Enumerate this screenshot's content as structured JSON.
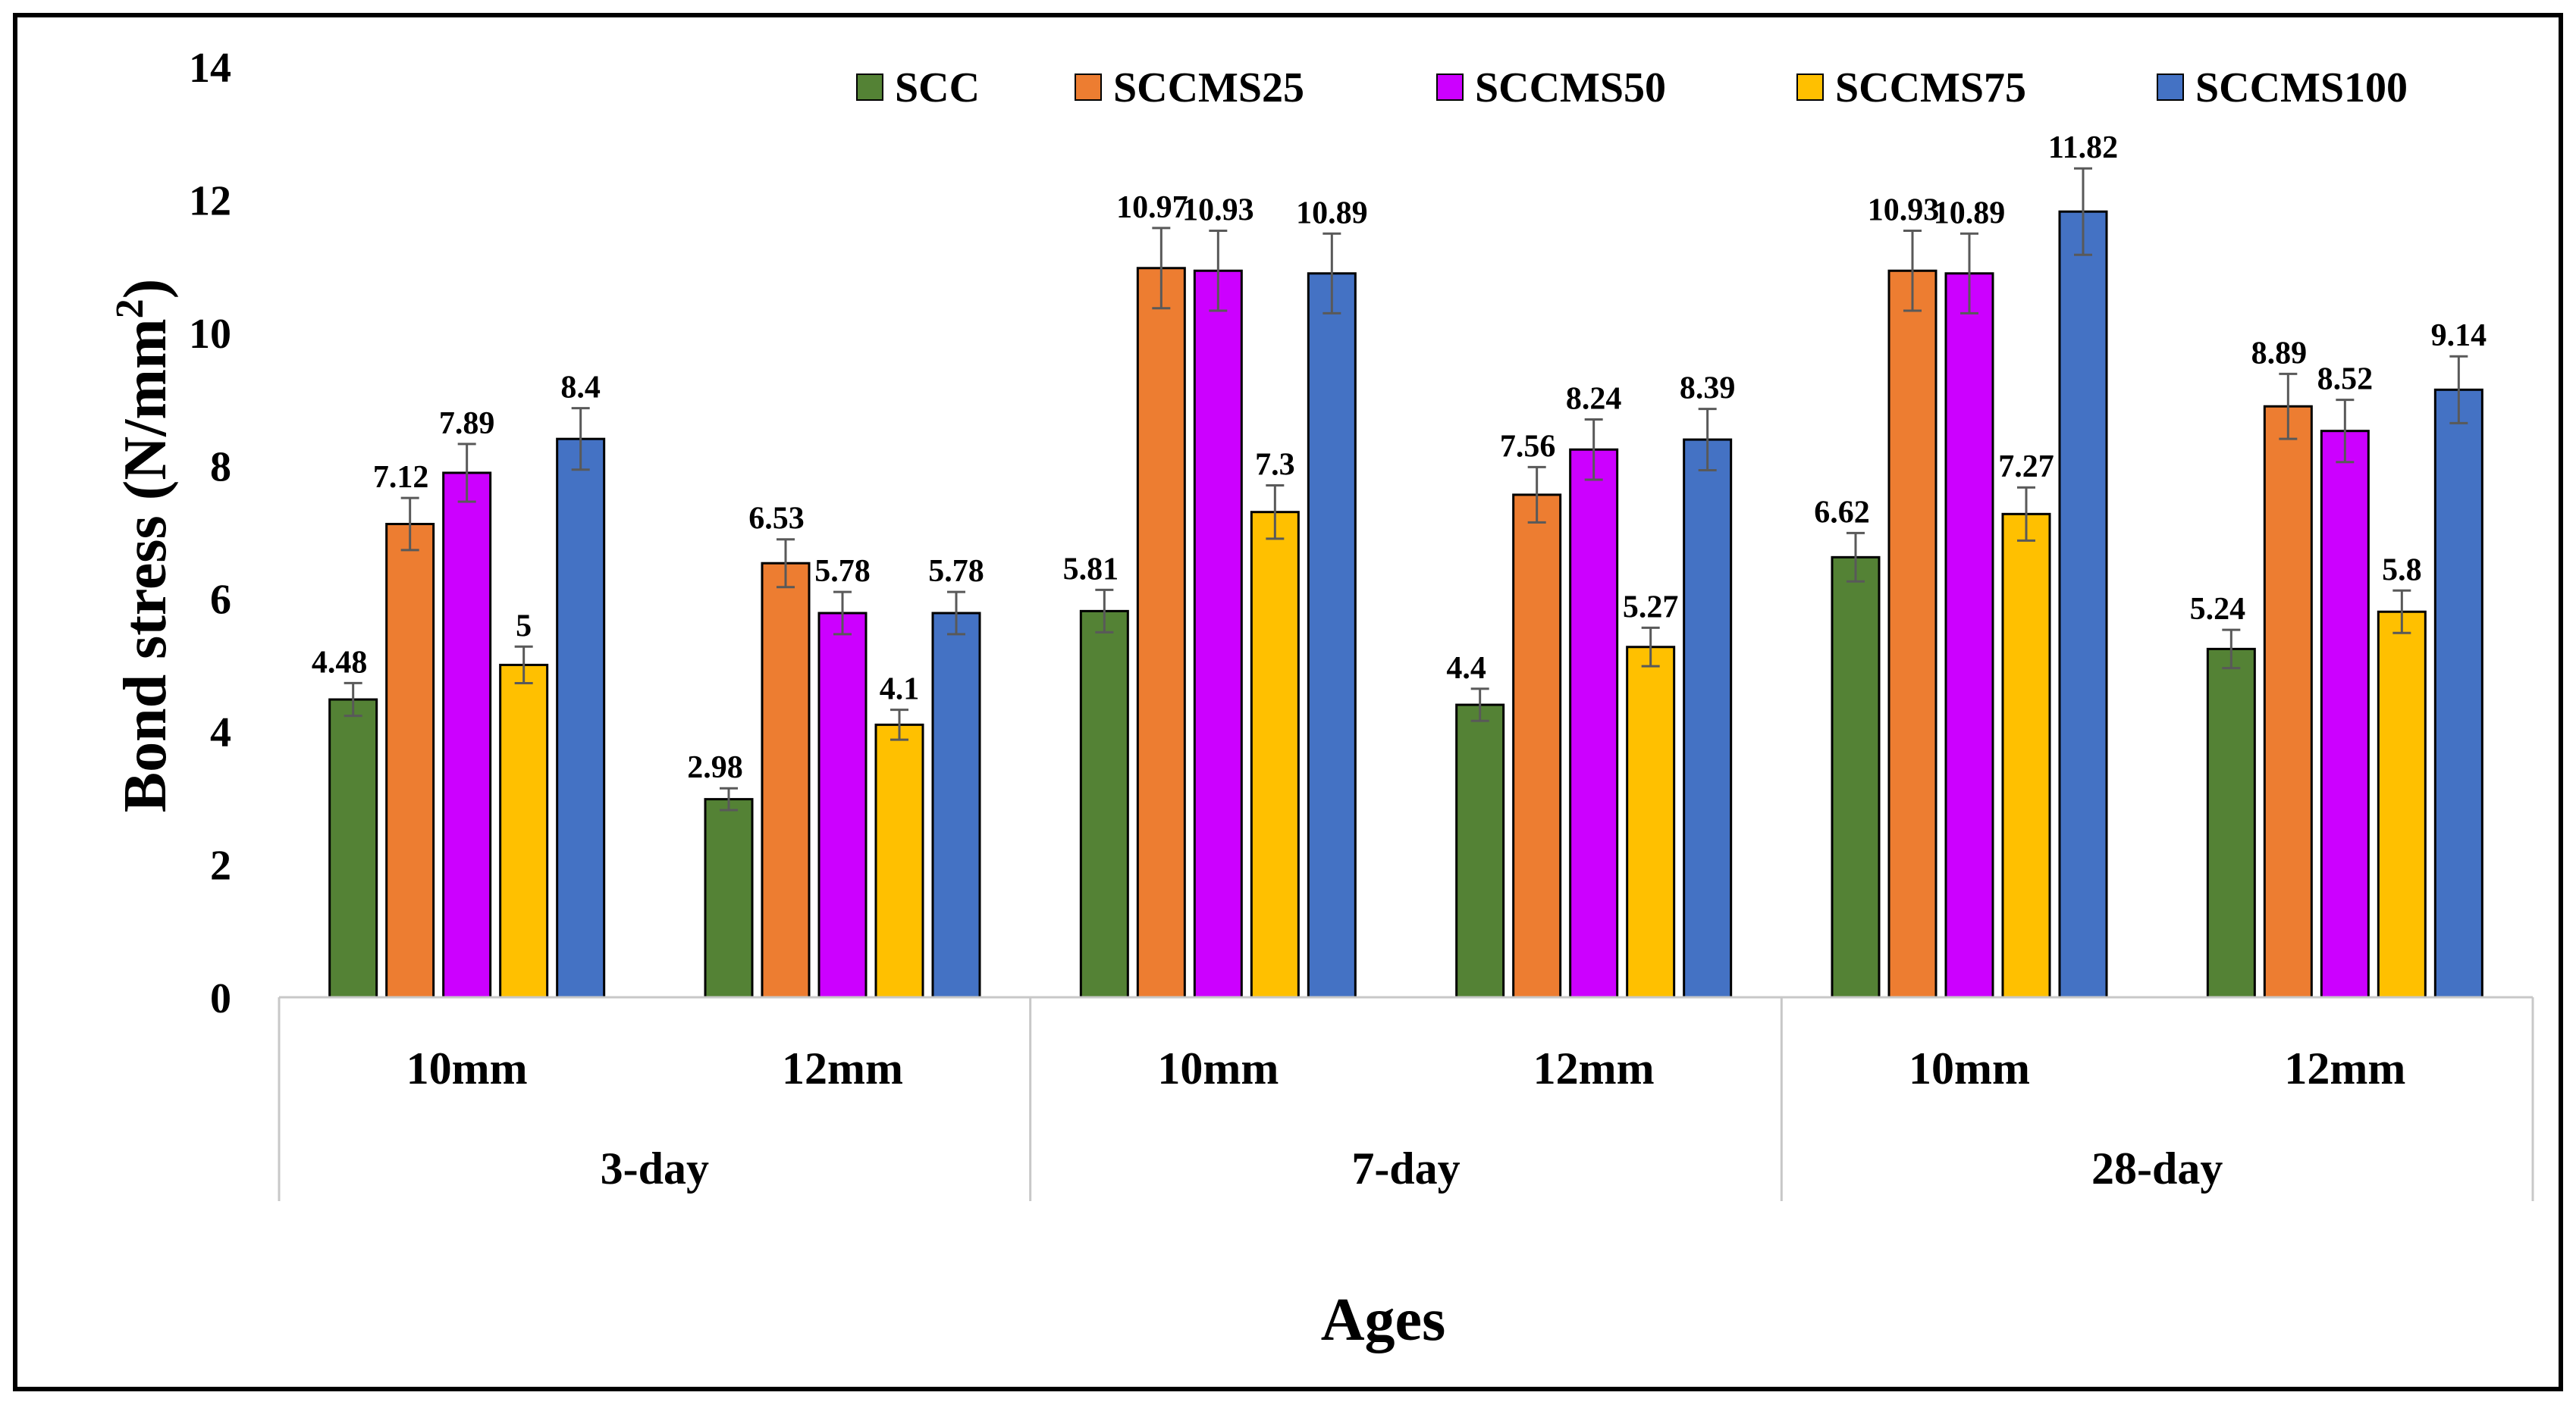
{
  "chart_data": {
    "type": "bar",
    "title": "",
    "xlabel": "Ages",
    "ylabel_main": "Bond stress (N/mm",
    "ylabel_sup": "2",
    "ylabel_end": ")",
    "ylim": [
      0,
      14
    ],
    "y_ticks": [
      "0",
      "2",
      "4",
      "6",
      "8",
      "10",
      "12",
      "14"
    ],
    "groups": [
      {
        "label": "3-day",
        "categories": [
          "10mm",
          "12mm"
        ]
      },
      {
        "label": "7-day",
        "categories": [
          "10mm",
          "12mm"
        ]
      },
      {
        "label": "28-day",
        "categories": [
          "10mm",
          "12mm"
        ]
      }
    ],
    "legend_position": "top-right",
    "series": [
      {
        "name": "SCC",
        "color": "#548235",
        "values": [
          4.48,
          2.98,
          5.81,
          4.4,
          6.62,
          5.24
        ],
        "labels": [
          "4.48",
          "2.98",
          "5.81",
          "4.4",
          "6.62",
          "5.24"
        ]
      },
      {
        "name": "SCCMS25",
        "color": "#ED7D31",
        "values": [
          7.12,
          6.53,
          10.97,
          7.56,
          10.93,
          8.89
        ],
        "labels": [
          "7.12",
          "6.53",
          "10.97",
          "7.56",
          "10.93",
          "8.89"
        ]
      },
      {
        "name": "SCCMS50",
        "color": "#CC00FF",
        "values": [
          7.89,
          5.78,
          10.93,
          8.24,
          10.89,
          8.52
        ],
        "labels": [
          "7.89",
          "5.78",
          "10.93",
          "8.24",
          "10.89",
          "8.52"
        ]
      },
      {
        "name": "SCCMS75",
        "color": "#FFC000",
        "values": [
          5,
          4.1,
          7.3,
          5.27,
          7.27,
          5.8
        ],
        "labels": [
          "5",
          "4.1",
          "7.3",
          "5.27",
          "7.27",
          "5.8"
        ]
      },
      {
        "name": "SCCMS100",
        "color": "#4472C4",
        "values": [
          8.4,
          5.78,
          10.89,
          8.39,
          11.82,
          9.14
        ],
        "labels": [
          "8.4",
          "5.78",
          "10.89",
          "8.39",
          "11.82",
          "9.14"
        ]
      }
    ]
  }
}
